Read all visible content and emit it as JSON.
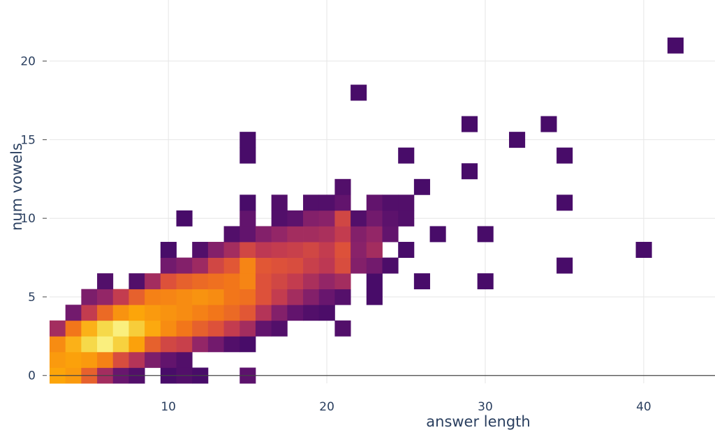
{
  "chart_data": {
    "type": "heatmap",
    "title": "",
    "xlabel": "answer length",
    "ylabel": "num vowels",
    "xlim": [
      2.5,
      44.5
    ],
    "ylim": [
      -0.5,
      23
    ],
    "x_ticks": [
      10,
      20,
      30,
      40
    ],
    "y_ticks": [
      0,
      5,
      10,
      15,
      20
    ],
    "grid": true,
    "colorscale": "inferno",
    "colorscale_stops": [
      "#420a68",
      "#6a176e",
      "#932667",
      "#bc3754",
      "#dd513a",
      "#f37819",
      "#fca50a",
      "#f6d746",
      "#fcffa4"
    ],
    "bin_width": 1,
    "bins": [
      {
        "x": 3,
        "y": 0,
        "level": 0.75
      },
      {
        "x": 4,
        "y": 0,
        "level": 0.72
      },
      {
        "x": 5,
        "y": 0,
        "level": 0.55
      },
      {
        "x": 6,
        "y": 0,
        "level": 0.3
      },
      {
        "x": 7,
        "y": 0,
        "level": 0.12
      },
      {
        "x": 8,
        "y": 0,
        "level": 0.05
      },
      {
        "x": 10,
        "y": 0,
        "level": 0.02
      },
      {
        "x": 11,
        "y": 0,
        "level": 0.05
      },
      {
        "x": 12,
        "y": 0,
        "level": 0.02
      },
      {
        "x": 15,
        "y": 0,
        "level": 0.08
      },
      {
        "x": 3,
        "y": 1,
        "level": 0.72
      },
      {
        "x": 4,
        "y": 1,
        "level": 0.74
      },
      {
        "x": 5,
        "y": 1,
        "level": 0.72
      },
      {
        "x": 6,
        "y": 1,
        "level": 0.65
      },
      {
        "x": 7,
        "y": 1,
        "level": 0.48
      },
      {
        "x": 8,
        "y": 1,
        "level": 0.35
      },
      {
        "x": 9,
        "y": 1,
        "level": 0.18
      },
      {
        "x": 10,
        "y": 1,
        "level": 0.1
      },
      {
        "x": 11,
        "y": 1,
        "level": 0.05
      },
      {
        "x": 3,
        "y": 2,
        "level": 0.68
      },
      {
        "x": 4,
        "y": 2,
        "level": 0.78
      },
      {
        "x": 5,
        "y": 2,
        "level": 0.88
      },
      {
        "x": 6,
        "y": 2,
        "level": 0.95
      },
      {
        "x": 7,
        "y": 2,
        "level": 0.86
      },
      {
        "x": 8,
        "y": 2,
        "level": 0.74
      },
      {
        "x": 9,
        "y": 2,
        "level": 0.55
      },
      {
        "x": 10,
        "y": 2,
        "level": 0.45
      },
      {
        "x": 11,
        "y": 2,
        "level": 0.42
      },
      {
        "x": 12,
        "y": 2,
        "level": 0.25
      },
      {
        "x": 13,
        "y": 2,
        "level": 0.15
      },
      {
        "x": 14,
        "y": 2,
        "level": 0.05
      },
      {
        "x": 15,
        "y": 2,
        "level": 0.02
      },
      {
        "x": 3,
        "y": 3,
        "level": 0.3
      },
      {
        "x": 4,
        "y": 3,
        "level": 0.62
      },
      {
        "x": 5,
        "y": 3,
        "level": 0.78
      },
      {
        "x": 6,
        "y": 3,
        "level": 0.88
      },
      {
        "x": 7,
        "y": 3,
        "level": 0.95
      },
      {
        "x": 8,
        "y": 3,
        "level": 0.85
      },
      {
        "x": 9,
        "y": 3,
        "level": 0.76
      },
      {
        "x": 10,
        "y": 3,
        "level": 0.68
      },
      {
        "x": 11,
        "y": 3,
        "level": 0.62
      },
      {
        "x": 12,
        "y": 3,
        "level": 0.55
      },
      {
        "x": 13,
        "y": 3,
        "level": 0.5
      },
      {
        "x": 14,
        "y": 3,
        "level": 0.4
      },
      {
        "x": 15,
        "y": 3,
        "level": 0.3
      },
      {
        "x": 16,
        "y": 3,
        "level": 0.1
      },
      {
        "x": 17,
        "y": 3,
        "level": 0.05
      },
      {
        "x": 21,
        "y": 3,
        "level": 0.05
      },
      {
        "x": 4,
        "y": 4,
        "level": 0.15
      },
      {
        "x": 5,
        "y": 4,
        "level": 0.4
      },
      {
        "x": 6,
        "y": 4,
        "level": 0.58
      },
      {
        "x": 7,
        "y": 4,
        "level": 0.7
      },
      {
        "x": 8,
        "y": 4,
        "level": 0.75
      },
      {
        "x": 9,
        "y": 4,
        "level": 0.72
      },
      {
        "x": 10,
        "y": 4,
        "level": 0.7
      },
      {
        "x": 11,
        "y": 4,
        "level": 0.68
      },
      {
        "x": 12,
        "y": 4,
        "level": 0.65
      },
      {
        "x": 13,
        "y": 4,
        "level": 0.62
      },
      {
        "x": 14,
        "y": 4,
        "level": 0.58
      },
      {
        "x": 15,
        "y": 4,
        "level": 0.52
      },
      {
        "x": 16,
        "y": 4,
        "level": 0.35
      },
      {
        "x": 17,
        "y": 4,
        "level": 0.2
      },
      {
        "x": 18,
        "y": 4,
        "level": 0.1
      },
      {
        "x": 19,
        "y": 4,
        "level": 0.05
      },
      {
        "x": 20,
        "y": 4,
        "level": 0.03
      },
      {
        "x": 5,
        "y": 5,
        "level": 0.18
      },
      {
        "x": 6,
        "y": 5,
        "level": 0.25
      },
      {
        "x": 7,
        "y": 5,
        "level": 0.4
      },
      {
        "x": 8,
        "y": 5,
        "level": 0.55
      },
      {
        "x": 9,
        "y": 5,
        "level": 0.65
      },
      {
        "x": 10,
        "y": 5,
        "level": 0.66
      },
      {
        "x": 11,
        "y": 5,
        "level": 0.68
      },
      {
        "x": 12,
        "y": 5,
        "level": 0.7
      },
      {
        "x": 13,
        "y": 5,
        "level": 0.68
      },
      {
        "x": 14,
        "y": 5,
        "level": 0.62
      },
      {
        "x": 15,
        "y": 5,
        "level": 0.6
      },
      {
        "x": 16,
        "y": 5,
        "level": 0.5
      },
      {
        "x": 17,
        "y": 5,
        "level": 0.4
      },
      {
        "x": 18,
        "y": 5,
        "level": 0.3
      },
      {
        "x": 19,
        "y": 5,
        "level": 0.2
      },
      {
        "x": 20,
        "y": 5,
        "level": 0.12
      },
      {
        "x": 21,
        "y": 5,
        "level": 0.06
      },
      {
        "x": 23,
        "y": 5,
        "level": 0.02
      },
      {
        "x": 6,
        "y": 6,
        "level": 0.05
      },
      {
        "x": 8,
        "y": 6,
        "level": 0.05
      },
      {
        "x": 9,
        "y": 6,
        "level": 0.3
      },
      {
        "x": 10,
        "y": 6,
        "level": 0.5
      },
      {
        "x": 11,
        "y": 6,
        "level": 0.55
      },
      {
        "x": 12,
        "y": 6,
        "level": 0.58
      },
      {
        "x": 13,
        "y": 6,
        "level": 0.6
      },
      {
        "x": 14,
        "y": 6,
        "level": 0.62
      },
      {
        "x": 15,
        "y": 6,
        "level": 0.66
      },
      {
        "x": 16,
        "y": 6,
        "level": 0.5
      },
      {
        "x": 17,
        "y": 6,
        "level": 0.45
      },
      {
        "x": 18,
        "y": 6,
        "level": 0.4
      },
      {
        "x": 19,
        "y": 6,
        "level": 0.32
      },
      {
        "x": 20,
        "y": 6,
        "level": 0.25
      },
      {
        "x": 21,
        "y": 6,
        "level": 0.3
      },
      {
        "x": 23,
        "y": 6,
        "level": 0.02
      },
      {
        "x": 26,
        "y": 6,
        "level": 0.02
      },
      {
        "x": 30,
        "y": 6,
        "level": 0.02
      },
      {
        "x": 10,
        "y": 7,
        "level": 0.15
      },
      {
        "x": 11,
        "y": 7,
        "level": 0.2
      },
      {
        "x": 12,
        "y": 7,
        "level": 0.28
      },
      {
        "x": 13,
        "y": 7,
        "level": 0.45
      },
      {
        "x": 14,
        "y": 7,
        "level": 0.52
      },
      {
        "x": 15,
        "y": 7,
        "level": 0.66
      },
      {
        "x": 16,
        "y": 7,
        "level": 0.52
      },
      {
        "x": 17,
        "y": 7,
        "level": 0.5
      },
      {
        "x": 18,
        "y": 7,
        "level": 0.48
      },
      {
        "x": 19,
        "y": 7,
        "level": 0.42
      },
      {
        "x": 20,
        "y": 7,
        "level": 0.38
      },
      {
        "x": 21,
        "y": 7,
        "level": 0.48
      },
      {
        "x": 22,
        "y": 7,
        "level": 0.2
      },
      {
        "x": 23,
        "y": 7,
        "level": 0.15
      },
      {
        "x": 24,
        "y": 7,
        "level": 0.03
      },
      {
        "x": 35,
        "y": 7,
        "level": 0.02
      },
      {
        "x": 10,
        "y": 8,
        "level": 0.02
      },
      {
        "x": 12,
        "y": 8,
        "level": 0.05
      },
      {
        "x": 13,
        "y": 8,
        "level": 0.2
      },
      {
        "x": 14,
        "y": 8,
        "level": 0.3
      },
      {
        "x": 15,
        "y": 8,
        "level": 0.45
      },
      {
        "x": 16,
        "y": 8,
        "level": 0.38
      },
      {
        "x": 17,
        "y": 8,
        "level": 0.4
      },
      {
        "x": 18,
        "y": 8,
        "level": 0.42
      },
      {
        "x": 19,
        "y": 8,
        "level": 0.45
      },
      {
        "x": 20,
        "y": 8,
        "level": 0.4
      },
      {
        "x": 21,
        "y": 8,
        "level": 0.5
      },
      {
        "x": 22,
        "y": 8,
        "level": 0.22
      },
      {
        "x": 23,
        "y": 8,
        "level": 0.3
      },
      {
        "x": 25,
        "y": 8,
        "level": 0.02
      },
      {
        "x": 40,
        "y": 8,
        "level": 0.02
      },
      {
        "x": 14,
        "y": 9,
        "level": 0.05
      },
      {
        "x": 15,
        "y": 9,
        "level": 0.1
      },
      {
        "x": 16,
        "y": 9,
        "level": 0.2
      },
      {
        "x": 17,
        "y": 9,
        "level": 0.25
      },
      {
        "x": 18,
        "y": 9,
        "level": 0.3
      },
      {
        "x": 19,
        "y": 9,
        "level": 0.3
      },
      {
        "x": 20,
        "y": 9,
        "level": 0.32
      },
      {
        "x": 21,
        "y": 9,
        "level": 0.4
      },
      {
        "x": 22,
        "y": 9,
        "level": 0.2
      },
      {
        "x": 23,
        "y": 9,
        "level": 0.25
      },
      {
        "x": 24,
        "y": 9,
        "level": 0.1
      },
      {
        "x": 27,
        "y": 9,
        "level": 0.02
      },
      {
        "x": 30,
        "y": 9,
        "level": 0.02
      },
      {
        "x": 11,
        "y": 10,
        "level": 0.02
      },
      {
        "x": 15,
        "y": 10,
        "level": 0.1
      },
      {
        "x": 17,
        "y": 10,
        "level": 0.05
      },
      {
        "x": 18,
        "y": 10,
        "level": 0.08
      },
      {
        "x": 19,
        "y": 10,
        "level": 0.2
      },
      {
        "x": 20,
        "y": 10,
        "level": 0.22
      },
      {
        "x": 21,
        "y": 10,
        "level": 0.45
      },
      {
        "x": 22,
        "y": 10,
        "level": 0.05
      },
      {
        "x": 23,
        "y": 10,
        "level": 0.15
      },
      {
        "x": 24,
        "y": 10,
        "level": 0.08
      },
      {
        "x": 25,
        "y": 10,
        "level": 0.05
      },
      {
        "x": 15,
        "y": 11,
        "level": 0.02
      },
      {
        "x": 17,
        "y": 11,
        "level": 0.05
      },
      {
        "x": 19,
        "y": 11,
        "level": 0.05
      },
      {
        "x": 20,
        "y": 11,
        "level": 0.05
      },
      {
        "x": 21,
        "y": 11,
        "level": 0.1
      },
      {
        "x": 23,
        "y": 11,
        "level": 0.1
      },
      {
        "x": 24,
        "y": 11,
        "level": 0.05
      },
      {
        "x": 25,
        "y": 11,
        "level": 0.05
      },
      {
        "x": 35,
        "y": 11,
        "level": 0.02
      },
      {
        "x": 21,
        "y": 12,
        "level": 0.05
      },
      {
        "x": 26,
        "y": 12,
        "level": 0.02
      },
      {
        "x": 29,
        "y": 13,
        "level": 0.02
      },
      {
        "x": 15,
        "y": 14,
        "level": 0.02
      },
      {
        "x": 25,
        "y": 14,
        "level": 0.02
      },
      {
        "x": 35,
        "y": 14,
        "level": 0.02
      },
      {
        "x": 15,
        "y": 15,
        "level": 0.02
      },
      {
        "x": 32,
        "y": 15,
        "level": 0.02
      },
      {
        "x": 29,
        "y": 16,
        "level": 0.02
      },
      {
        "x": 34,
        "y": 16,
        "level": 0.02
      },
      {
        "x": 22,
        "y": 18,
        "level": 0.02
      },
      {
        "x": 42,
        "y": 21,
        "level": 0.02
      }
    ]
  }
}
